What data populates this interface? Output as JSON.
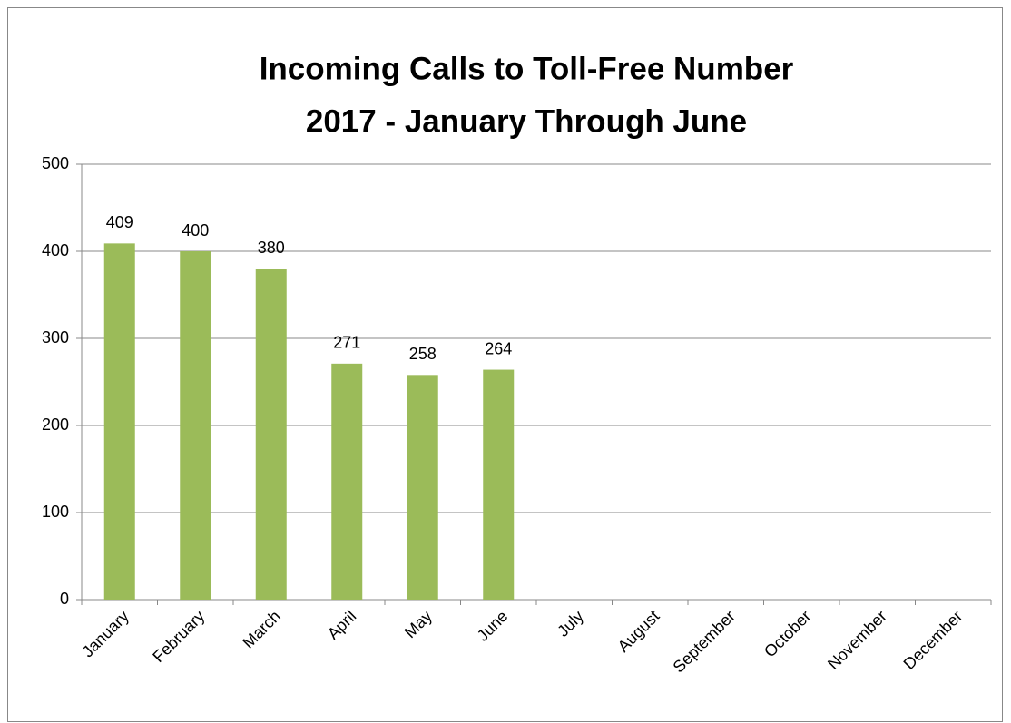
{
  "chart_data": {
    "type": "bar",
    "title": "Incoming Calls to Toll-Free Number",
    "subtitle": "2017 - January Through June",
    "categories": [
      "January",
      "February",
      "March",
      "April",
      "May",
      "June",
      "July",
      "August",
      "September",
      "October",
      "November",
      "December"
    ],
    "values": [
      409,
      400,
      380,
      271,
      258,
      264,
      null,
      null,
      null,
      null,
      null,
      null
    ],
    "color": "#9bbb59",
    "ylim": [
      0,
      500
    ],
    "yticks": [
      0,
      100,
      200,
      300,
      400,
      500
    ],
    "grid": true
  }
}
